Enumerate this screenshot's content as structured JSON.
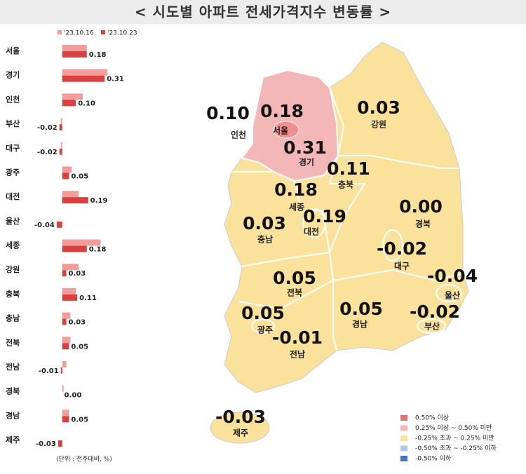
{
  "title": "< 시도별 아파트 전세가격지수 변동률 >",
  "chart_data": {
    "type": "bar",
    "orientation": "horizontal",
    "categories": [
      "서울",
      "경기",
      "인천",
      "부산",
      "대구",
      "광주",
      "대전",
      "울산",
      "세종",
      "강원",
      "충북",
      "충남",
      "전북",
      "전남",
      "경북",
      "경남",
      "제주"
    ],
    "series": [
      {
        "name": "'23.10.16",
        "color": "#f29c9c",
        "values": [
          0.18,
          0.33,
          0.15,
          -0.01,
          -0.01,
          0.07,
          0.12,
          0.0,
          0.28,
          0.12,
          0.1,
          0.06,
          0.06,
          0.03,
          0.01,
          0.05,
          0.0
        ]
      },
      {
        "name": "'23.10.23",
        "color": "#d9413f",
        "values": [
          0.18,
          0.31,
          0.1,
          -0.02,
          -0.02,
          0.05,
          0.19,
          -0.04,
          0.18,
          0.03,
          0.11,
          0.03,
          0.05,
          -0.01,
          0.0,
          0.05,
          -0.03
        ],
        "value_labels": [
          "0.18",
          "0.31",
          "0.10",
          "-0.02",
          "-0.02",
          "0.05",
          "0.19",
          "-0.04",
          "0.18",
          "0.03",
          "0.11",
          "0.03",
          "0.05",
          "-0.01",
          "0.00",
          "0.05",
          "-0.03"
        ]
      }
    ],
    "xlim": [
      -0.07,
      0.35
    ],
    "note": "(단위 : 전주대비, %)"
  },
  "map_legend": [
    {
      "label": "0.50% 이상",
      "color": "#e07272"
    },
    {
      "label": "0.25% 이상 ~ 0.50% 미만",
      "color": "#f4b7b7"
    },
    {
      "label": "-0.25% 초과 ~ 0.25% 미만",
      "color": "#fbe29c"
    },
    {
      "label": "-0.50% 초과 ~ -0.25% 이하",
      "color": "#b4c7e7"
    },
    {
      "label": "-0.50% 이하",
      "color": "#4472c4"
    }
  ]
}
